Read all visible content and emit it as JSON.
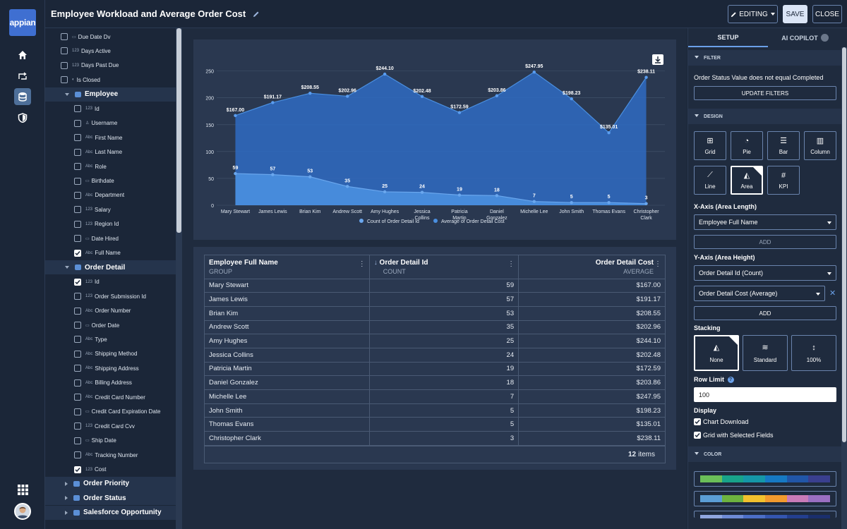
{
  "app": {
    "logo": "appian",
    "title": "Employee Workload and Average Order Cost"
  },
  "header": {
    "editing_label": "EDITING",
    "save_label": "SAVE",
    "close_label": "CLOSE"
  },
  "rail": {
    "icons": [
      "home-icon",
      "process-icon",
      "data-icon",
      "shield-icon"
    ],
    "apps_icon": "grid-icon"
  },
  "tree": {
    "rows": [
      {
        "type": "field",
        "label": "Due Date Dv",
        "icon": "calendar",
        "checked": false,
        "indent": 1
      },
      {
        "type": "field",
        "label": "Days Active",
        "icon": "123",
        "checked": false,
        "indent": 1
      },
      {
        "type": "field",
        "label": "Days Past Due",
        "icon": "123",
        "checked": false,
        "indent": 1
      },
      {
        "type": "field",
        "label": "Is Closed",
        "icon": "toggle",
        "checked": false,
        "indent": 1
      },
      {
        "type": "section",
        "label": "Employee",
        "expanded": true
      },
      {
        "type": "field",
        "label": "Id",
        "icon": "123",
        "checked": false,
        "indent": 2
      },
      {
        "type": "field",
        "label": "Username",
        "icon": "person",
        "checked": false,
        "indent": 2
      },
      {
        "type": "field",
        "label": "First Name",
        "icon": "Abc",
        "checked": false,
        "indent": 2
      },
      {
        "type": "field",
        "label": "Last Name",
        "icon": "Abc",
        "checked": false,
        "indent": 2
      },
      {
        "type": "field",
        "label": "Role",
        "icon": "Abc",
        "checked": false,
        "indent": 2
      },
      {
        "type": "field",
        "label": "Birthdate",
        "icon": "calendar",
        "checked": false,
        "indent": 2
      },
      {
        "type": "field",
        "label": "Department",
        "icon": "Abc",
        "checked": false,
        "indent": 2
      },
      {
        "type": "field",
        "label": "Salary",
        "icon": "123",
        "checked": false,
        "indent": 2
      },
      {
        "type": "field",
        "label": "Region Id",
        "icon": "123",
        "checked": false,
        "indent": 2
      },
      {
        "type": "field",
        "label": "Date Hired",
        "icon": "calendar",
        "checked": false,
        "indent": 2
      },
      {
        "type": "field",
        "label": "Full Name",
        "icon": "Abc",
        "checked": true,
        "indent": 2
      },
      {
        "type": "section",
        "label": "Order Detail",
        "expanded": true
      },
      {
        "type": "field",
        "label": "Id",
        "icon": "123",
        "checked": true,
        "indent": 2
      },
      {
        "type": "field",
        "label": "Order Submission Id",
        "icon": "123",
        "checked": false,
        "indent": 2
      },
      {
        "type": "field",
        "label": "Order Number",
        "icon": "Abc",
        "checked": false,
        "indent": 2
      },
      {
        "type": "field",
        "label": "Order Date",
        "icon": "calendar",
        "checked": false,
        "indent": 2
      },
      {
        "type": "field",
        "label": "Type",
        "icon": "Abc",
        "checked": false,
        "indent": 2
      },
      {
        "type": "field",
        "label": "Shipping Method",
        "icon": "Abc",
        "checked": false,
        "indent": 2
      },
      {
        "type": "field",
        "label": "Shipping Address",
        "icon": "Abc",
        "checked": false,
        "indent": 2
      },
      {
        "type": "field",
        "label": "Billing Address",
        "icon": "Abc",
        "checked": false,
        "indent": 2
      },
      {
        "type": "field",
        "label": "Credit Card Number",
        "icon": "Abc",
        "checked": false,
        "indent": 2
      },
      {
        "type": "field",
        "label": "Credit Card Expiration Date",
        "icon": "calendar",
        "checked": false,
        "indent": 2
      },
      {
        "type": "field",
        "label": "Credit Card Cvv",
        "icon": "123",
        "checked": false,
        "indent": 2
      },
      {
        "type": "field",
        "label": "Ship Date",
        "icon": "calendar",
        "checked": false,
        "indent": 2
      },
      {
        "type": "field",
        "label": "Tracking Number",
        "icon": "Abc",
        "checked": false,
        "indent": 2
      },
      {
        "type": "field",
        "label": "Cost",
        "icon": "123",
        "checked": true,
        "indent": 2
      },
      {
        "type": "section",
        "label": "Order Priority",
        "expanded": false
      },
      {
        "type": "section",
        "label": "Order Status",
        "expanded": false
      },
      {
        "type": "section",
        "label": "Salesforce Opportunity",
        "expanded": false
      }
    ]
  },
  "chart_data": {
    "type": "area",
    "categories": [
      "Mary Stewart",
      "James Lewis",
      "Brian Kim",
      "Andrew Scott",
      "Amy Hughes",
      "Jessica Collins",
      "Patricia Martin",
      "Daniel Gonzalez",
      "Michelle Lee",
      "John Smith",
      "Thomas Evans",
      "Christopher Clark"
    ],
    "series": [
      {
        "name": "Count of Order Detail Id",
        "values": [
          59,
          57,
          53,
          35,
          25,
          24,
          19,
          18,
          7,
          5,
          5,
          3
        ],
        "labels": [
          "59",
          "57",
          "53",
          "35",
          "25",
          "24",
          "19",
          "18",
          "7",
          "5",
          "5",
          "3"
        ],
        "color": "#4a8fe0"
      },
      {
        "name": "Average of Order Detail Cost",
        "values": [
          167.0,
          191.17,
          208.55,
          202.96,
          244.1,
          202.48,
          172.59,
          203.86,
          247.95,
          198.23,
          135.01,
          238.11
        ],
        "labels": [
          "$167.00",
          "$191.17",
          "$208.55",
          "$202.96",
          "$244.10",
          "$202.48",
          "$172.59",
          "$203.86",
          "$247.95",
          "$198.23",
          "$135.01",
          "$238.11"
        ],
        "color": "#2f6bc2"
      }
    ],
    "yticks": [
      0,
      50,
      100,
      150,
      200,
      250
    ],
    "ylim": [
      0,
      260
    ],
    "grid": true,
    "legend": "bottom",
    "download_icon": "download-icon"
  },
  "grid": {
    "columns": [
      {
        "title": "Employee Full Name",
        "sub": "GROUP",
        "align": "left",
        "sorted": false
      },
      {
        "title": "Order Detail Id",
        "sub": "COUNT",
        "align": "left",
        "sorted": true
      },
      {
        "title": "Order Detail Cost",
        "sub": "AVERAGE",
        "align": "right",
        "sorted": false
      }
    ],
    "rows": [
      [
        "Mary Stewart",
        "59",
        "$167.00"
      ],
      [
        "James Lewis",
        "57",
        "$191.17"
      ],
      [
        "Brian Kim",
        "53",
        "$208.55"
      ],
      [
        "Andrew Scott",
        "35",
        "$202.96"
      ],
      [
        "Amy Hughes",
        "25",
        "$244.10"
      ],
      [
        "Jessica Collins",
        "24",
        "$202.48"
      ],
      [
        "Patricia Martin",
        "19",
        "$172.59"
      ],
      [
        "Daniel Gonzalez",
        "18",
        "$203.86"
      ],
      [
        "Michelle Lee",
        "7",
        "$247.95"
      ],
      [
        "John Smith",
        "5",
        "$198.23"
      ],
      [
        "Thomas Evans",
        "5",
        "$135.01"
      ],
      [
        "Christopher Clark",
        "3",
        "$238.11"
      ]
    ],
    "total_count": "12",
    "total_label": "items"
  },
  "panel": {
    "tabs": [
      "SETUP",
      "AI COPILOT"
    ],
    "filter": {
      "header": "FILTER",
      "text": "Order Status Value does not equal Completed",
      "button": "UPDATE FILTERS"
    },
    "design": {
      "header": "DESIGN",
      "chart_types": [
        "Grid",
        "Pie",
        "Bar",
        "Column",
        "Line",
        "Area",
        "KPI"
      ],
      "selected": "Area"
    },
    "x_axis": {
      "label": "X-Axis (Area Length)",
      "value": "Employee Full Name",
      "add": "ADD"
    },
    "y_axis": {
      "label": "Y-Axis (Area Height)",
      "values": [
        "Order Detail Id (Count)",
        "Order Detail Cost (Average)"
      ],
      "add": "ADD"
    },
    "stacking": {
      "label": "Stacking",
      "options": [
        "None",
        "Standard",
        "100%"
      ],
      "selected": "None"
    },
    "row_limit": {
      "label": "Row Limit",
      "value": "100"
    },
    "display": {
      "label": "Display",
      "options": [
        {
          "label": "Chart Download",
          "checked": true
        },
        {
          "label": "Grid with Selected Fields",
          "checked": true
        }
      ]
    },
    "color": {
      "header": "COLOR",
      "palettes": [
        [
          "#6bbf59",
          "#18a38a",
          "#1597a8",
          "#1679c4",
          "#2156a8",
          "#3a3f8f"
        ],
        [
          "#5b9ed6",
          "#6db33f",
          "#f2c12e",
          "#f29a2e",
          "#c97bb8",
          "#9a6fc2"
        ],
        [
          "#8fa6df",
          "#6e8bd6",
          "#4c6fc7",
          "#3456b0",
          "#233f8f",
          "#1a2f6d"
        ]
      ]
    }
  }
}
